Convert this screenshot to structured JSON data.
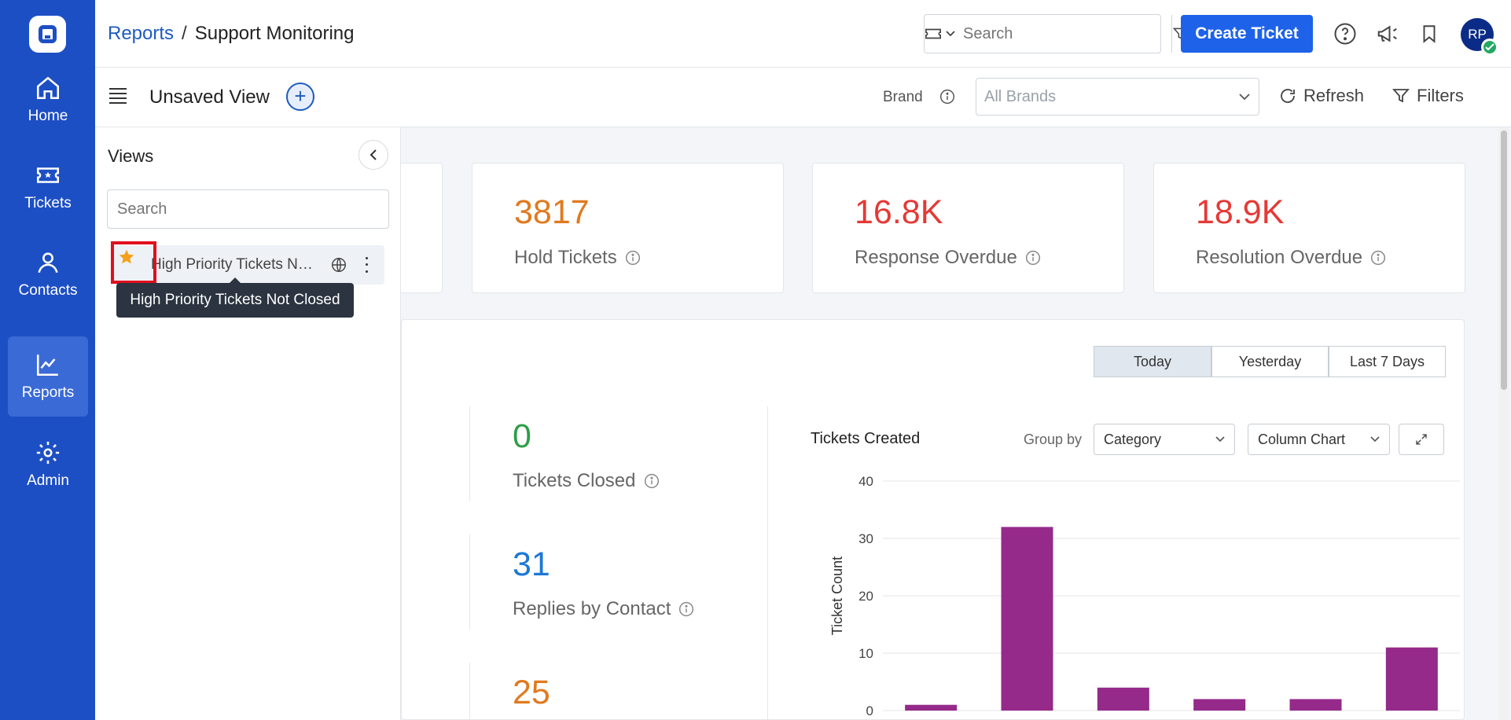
{
  "nav": {
    "items": [
      {
        "label": "Home",
        "icon": "home-icon"
      },
      {
        "label": "Tickets",
        "icon": "ticket-icon"
      },
      {
        "label": "Contacts",
        "icon": "contact-icon"
      },
      {
        "label": "Reports",
        "icon": "reports-icon",
        "active": true
      },
      {
        "label": "Admin",
        "icon": "gear-icon"
      }
    ]
  },
  "header": {
    "breadcrumb_link": "Reports",
    "breadcrumb_sep": "/",
    "breadcrumb_current": "Support Monitoring",
    "search_placeholder": "Search",
    "create_label": "Create Ticket",
    "avatar_initials": "RP"
  },
  "subheader": {
    "view_title": "Unsaved View",
    "brand_label": "Brand",
    "brand_placeholder": "All Brands",
    "refresh_label": "Refresh",
    "filters_label": "Filters"
  },
  "views_panel": {
    "title": "Views",
    "search_placeholder": "Search",
    "item_name": "High Priority Tickets Not Closed",
    "tooltip": "High Priority Tickets Not Closed"
  },
  "cards": [
    {
      "value": "3817",
      "label": "Hold Tickets",
      "color": "#e07a1f"
    },
    {
      "value": "16.8K",
      "label": "Response Overdue",
      "color": "#e53935"
    },
    {
      "value": "18.9K",
      "label": "Resolution Overdue",
      "color": "#e53935"
    }
  ],
  "periods": [
    "Today",
    "Yesterday",
    "Last 7 Days"
  ],
  "metrics": [
    {
      "value": "0",
      "label": "Tickets Closed",
      "color": "#2e9e48"
    },
    {
      "value": "31",
      "label": "Replies by Contact",
      "color": "#1e78d4"
    },
    {
      "value": "25",
      "label": "",
      "color": "#e07a1f"
    }
  ],
  "chart_panel": {
    "title": "Tickets Created",
    "group_by_label": "Group by",
    "group_by_value": "Category",
    "chart_type_value": "Column Chart"
  },
  "chart_data": {
    "type": "bar",
    "title": "Tickets Created",
    "ylabel": "Ticket Count",
    "ylim": [
      0,
      40
    ],
    "yticks": [
      "0",
      "10",
      "20",
      "30",
      "40"
    ],
    "values": [
      1,
      32,
      4,
      2,
      2,
      11
    ],
    "color": "#952a8a"
  }
}
